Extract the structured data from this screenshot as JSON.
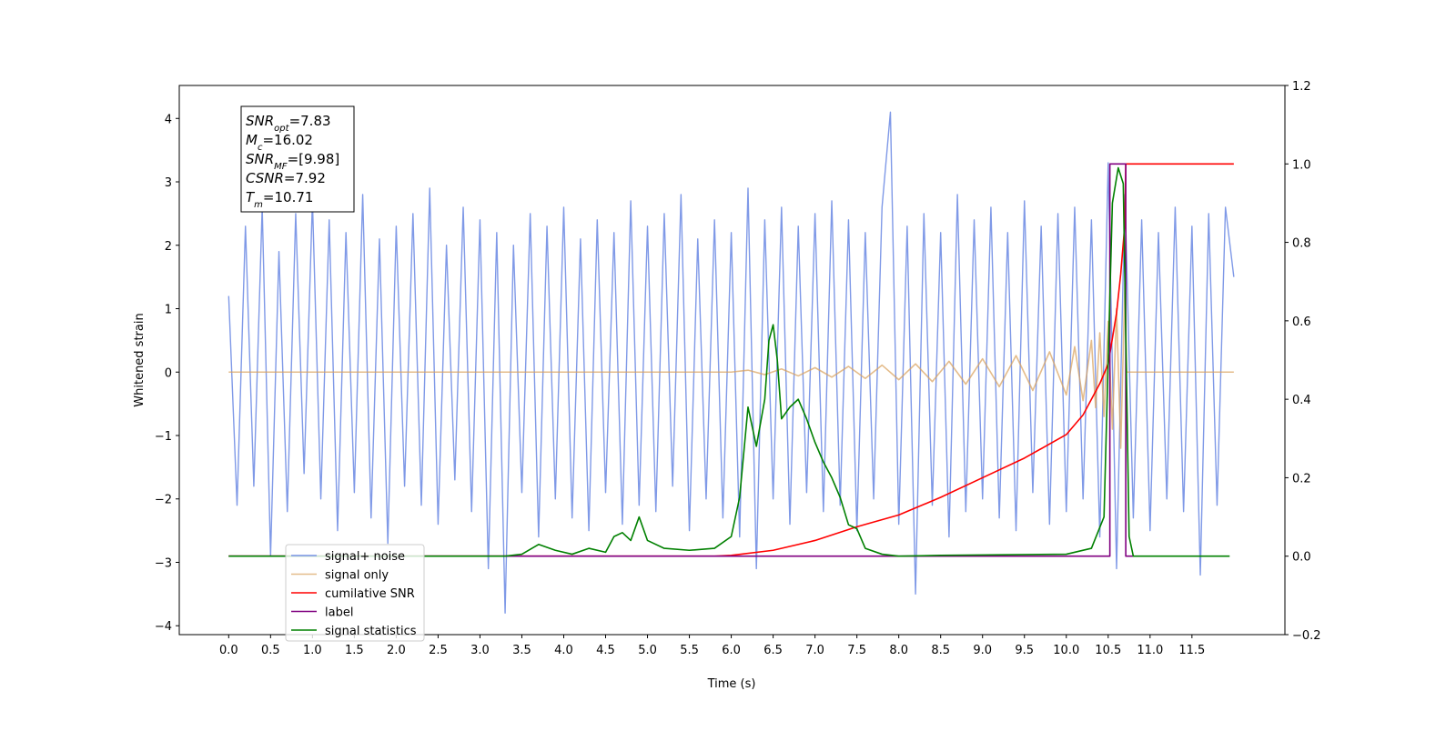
{
  "chart_data": {
    "type": "line",
    "xlabel": "Time (s)",
    "ylabel": "Whitened strain",
    "xlim": [
      -0.59,
      12.61
    ],
    "ylim": [
      -4.14,
      4.52
    ],
    "y2lim": [
      -0.2,
      1.2
    ],
    "xticks": [
      {
        "value": 0,
        "label": "0.0"
      },
      0.5,
      {
        "value": 1,
        "label": "1.0"
      },
      1.5,
      {
        "value": 2,
        "label": "2.0"
      },
      2.5,
      {
        "value": 3,
        "label": "3.0"
      },
      3.5,
      {
        "value": 4,
        "label": "4.0"
      },
      4.5,
      {
        "value": 5,
        "label": "5.0"
      },
      5.5,
      {
        "value": 6,
        "label": "6.0"
      },
      6.5,
      {
        "value": 7,
        "label": "7.0"
      },
      7.5,
      {
        "value": 8,
        "label": "8.0"
      },
      8.5,
      {
        "value": 9,
        "label": "9.0"
      },
      9.5,
      {
        "value": 10,
        "label": "10.0"
      },
      10.5,
      {
        "value": 11,
        "label": "11.0"
      },
      11.5
    ],
    "yticks": [
      {
        "value": -4,
        "label": "−4"
      },
      {
        "value": -3,
        "label": "−3"
      },
      {
        "value": -2,
        "label": "−2"
      },
      {
        "value": -1,
        "label": "−1"
      },
      0,
      1,
      2,
      3,
      4
    ],
    "y2ticks": [
      {
        "value": -0.2,
        "label": "−0.2"
      },
      {
        "value": 0,
        "label": "0.0"
      },
      0.2,
      0.4,
      0.6,
      0.8,
      {
        "value": 1,
        "label": "1.0"
      },
      1.2
    ],
    "legend": "lower left",
    "annotation": [
      {
        "text": "SNR",
        "sub": "opt",
        "value": "=7.83"
      },
      {
        "text": "M",
        "sub": "c",
        "value": "=16.02"
      },
      {
        "text": "SNR",
        "sub": "MF",
        "value": "=[9.98]"
      },
      {
        "text": "CSNR",
        "value": "=7.92"
      },
      {
        "text": "T",
        "sub": "m",
        "value": "=10.71"
      }
    ],
    "series": [
      {
        "name": "signal+ noise",
        "color": "#7893e6",
        "axis": "y",
        "x": [
          0.0,
          0.1,
          0.2,
          0.3,
          0.4,
          0.5,
          0.6,
          0.7,
          0.8,
          0.9,
          1.0,
          1.1,
          1.2,
          1.3,
          1.4,
          1.5,
          1.6,
          1.7,
          1.8,
          1.9,
          2.0,
          2.1,
          2.2,
          2.3,
          2.4,
          2.5,
          2.6,
          2.7,
          2.8,
          2.9,
          3.0,
          3.1,
          3.2,
          3.3,
          3.4,
          3.5,
          3.6,
          3.7,
          3.8,
          3.9,
          4.0,
          4.1,
          4.2,
          4.3,
          4.4,
          4.5,
          4.6,
          4.7,
          4.8,
          4.9,
          5.0,
          5.1,
          5.2,
          5.3,
          5.4,
          5.5,
          5.6,
          5.7,
          5.8,
          5.9,
          6.0,
          6.1,
          6.2,
          6.3,
          6.4,
          6.5,
          6.6,
          6.7,
          6.8,
          6.9,
          7.0,
          7.1,
          7.2,
          7.3,
          7.4,
          7.5,
          7.6,
          7.7,
          7.8,
          7.9,
          8.0,
          8.1,
          8.2,
          8.3,
          8.4,
          8.5,
          8.6,
          8.7,
          8.8,
          8.9,
          9.0,
          9.1,
          9.2,
          9.3,
          9.4,
          9.5,
          9.6,
          9.7,
          9.8,
          9.9,
          10.0,
          10.1,
          10.2,
          10.3,
          10.4,
          10.5,
          10.6,
          10.7,
          10.8,
          10.9,
          11.0,
          11.1,
          11.2,
          11.3,
          11.4,
          11.5,
          11.6,
          11.7,
          11.8,
          11.9,
          12.0
        ],
        "values": [
          1.2,
          -2.1,
          2.3,
          -1.8,
          2.6,
          -2.9,
          1.9,
          -2.2,
          2.5,
          -1.6,
          2.7,
          -2.0,
          2.4,
          -2.5,
          2.2,
          -1.9,
          2.8,
          -2.3,
          2.1,
          -2.7,
          2.3,
          -1.8,
          2.5,
          -2.1,
          2.9,
          -2.4,
          2.0,
          -1.7,
          2.6,
          -2.2,
          2.4,
          -3.1,
          2.2,
          -3.8,
          2.0,
          -1.9,
          2.5,
          -2.6,
          2.3,
          -2.0,
          2.6,
          -2.3,
          2.1,
          -2.5,
          2.4,
          -1.9,
          2.2,
          -2.4,
          2.7,
          -2.1,
          2.3,
          -2.2,
          2.5,
          -1.8,
          2.8,
          -2.5,
          2.1,
          -2.0,
          2.4,
          -2.3,
          2.2,
          -2.6,
          2.9,
          -3.1,
          2.4,
          -2.0,
          2.6,
          -2.4,
          2.3,
          -1.9,
          2.5,
          -2.2,
          2.7,
          -2.1,
          2.4,
          -2.5,
          2.2,
          -2.0,
          2.6,
          4.1,
          -2.4,
          2.3,
          -3.5,
          2.5,
          -2.1,
          2.2,
          -2.6,
          2.8,
          -2.2,
          2.4,
          -2.0,
          2.6,
          -2.3,
          2.2,
          -2.5,
          2.7,
          -1.9,
          2.3,
          -2.4,
          2.5,
          -2.2,
          2.6,
          -2.0,
          2.4,
          -2.6,
          3.3,
          -3.1,
          2.8,
          -2.3,
          2.4,
          -2.5,
          2.2,
          -2.0,
          2.6,
          -2.2,
          2.3,
          -3.2,
          2.5,
          -2.1,
          2.6,
          1.5
        ]
      },
      {
        "name": "signal only",
        "color": "#d9a05a",
        "axis": "y",
        "x": [
          0.0,
          6.0,
          6.2,
          6.4,
          6.6,
          6.8,
          7.0,
          7.2,
          7.4,
          7.6,
          7.8,
          8.0,
          8.2,
          8.4,
          8.6,
          8.8,
          9.0,
          9.2,
          9.4,
          9.6,
          9.8,
          10.0,
          10.1,
          10.2,
          10.3,
          10.35,
          10.4,
          10.45,
          10.5,
          10.55,
          10.6,
          10.65,
          10.7,
          10.72,
          12.0
        ],
        "values": [
          0,
          0,
          0.03,
          -0.04,
          0.05,
          -0.06,
          0.07,
          -0.08,
          0.09,
          -0.1,
          0.11,
          -0.12,
          0.13,
          -0.15,
          0.17,
          -0.19,
          0.21,
          -0.23,
          0.26,
          -0.29,
          0.32,
          -0.36,
          0.4,
          -0.45,
          0.5,
          -0.56,
          0.62,
          -0.7,
          0.8,
          -0.9,
          1.0,
          -1.2,
          1.4,
          0,
          0
        ]
      },
      {
        "name": "cumilative SNR",
        "color": "#ff0000",
        "axis": "y2",
        "x": [
          0.0,
          5.8,
          6.0,
          6.5,
          7.0,
          7.5,
          8.0,
          8.5,
          9.0,
          9.5,
          10.0,
          10.2,
          10.4,
          10.5,
          10.6,
          10.65,
          10.7,
          10.71,
          12.0
        ],
        "values": [
          0,
          0,
          0.002,
          0.015,
          0.04,
          0.075,
          0.105,
          0.15,
          0.2,
          0.25,
          0.31,
          0.36,
          0.44,
          0.49,
          0.62,
          0.72,
          0.85,
          1.0,
          1.0
        ]
      },
      {
        "name": "label",
        "color": "#800080",
        "axis": "y2",
        "x": [
          0.0,
          10.52,
          10.52,
          10.71,
          10.71,
          10.8
        ],
        "values": [
          0,
          0,
          1,
          1,
          0,
          0
        ]
      },
      {
        "name": "signal statistics",
        "color": "#008000",
        "axis": "y2",
        "x": [
          0.0,
          3.3,
          3.5,
          3.7,
          3.9,
          4.1,
          4.3,
          4.5,
          4.6,
          4.7,
          4.8,
          4.9,
          5.0,
          5.2,
          5.5,
          5.8,
          6.0,
          6.1,
          6.2,
          6.3,
          6.4,
          6.45,
          6.5,
          6.55,
          6.6,
          6.7,
          6.8,
          6.9,
          7.0,
          7.1,
          7.2,
          7.3,
          7.4,
          7.5,
          7.6,
          7.8,
          8.0,
          8.5,
          10.0,
          10.3,
          10.45,
          10.55,
          10.62,
          10.68,
          10.75,
          10.8,
          11.95
        ],
        "values": [
          0,
          0,
          0.005,
          0.03,
          0.015,
          0.005,
          0.02,
          0.01,
          0.05,
          0.06,
          0.04,
          0.1,
          0.04,
          0.02,
          0.015,
          0.02,
          0.05,
          0.15,
          0.38,
          0.28,
          0.4,
          0.55,
          0.59,
          0.5,
          0.35,
          0.38,
          0.4,
          0.35,
          0.29,
          0.24,
          0.2,
          0.15,
          0.08,
          0.07,
          0.02,
          0.005,
          0,
          0.002,
          0.005,
          0.02,
          0.1,
          0.9,
          0.99,
          0.95,
          0.05,
          0,
          0
        ]
      }
    ]
  }
}
